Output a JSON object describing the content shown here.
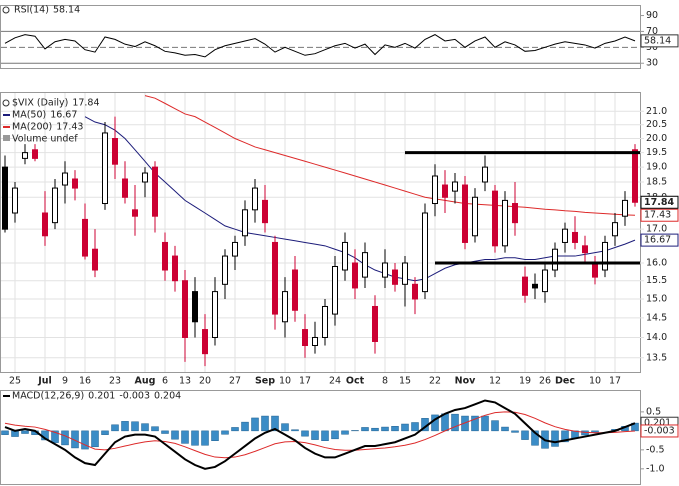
{
  "chart_data": [
    {
      "type": "line",
      "ylim": [
        24,
        102
      ],
      "yticks": [
        90,
        70,
        50,
        30
      ],
      "bands": [
        70,
        30
      ],
      "midline": 50,
      "series": [
        {
          "name": "RSI(14)",
          "color": "#000000",
          "values": [
            55,
            62,
            66,
            64,
            48,
            57,
            60,
            58,
            47,
            44,
            63,
            60,
            54,
            51,
            57,
            52,
            45,
            43,
            40,
            41,
            38,
            47,
            52,
            55,
            58,
            61,
            54,
            44,
            50,
            45,
            40,
            42,
            47,
            52,
            55,
            49,
            54,
            41,
            53,
            50,
            55,
            49,
            60,
            66,
            58,
            60,
            50,
            58,
            63,
            50,
            57,
            53,
            45,
            46,
            50,
            54,
            57,
            55,
            53,
            49,
            55,
            58,
            63,
            58.14
          ]
        }
      ]
    },
    {
      "type": "candlestick",
      "title": "$VIX (Daily)",
      "log_scale": true,
      "grid": true,
      "ylim": [
        13.16,
        21.7
      ],
      "yticks": [
        {
          "value": 21,
          "label": "21.0"
        },
        20.5,
        {
          "value": 20,
          "label": "20.0"
        },
        19.5,
        {
          "value": 19,
          "label": "19.0"
        },
        18.5,
        {
          "value": 18,
          "label": "18.0"
        },
        {
          "value": 17,
          "label": "17.0"
        },
        {
          "value": 16,
          "label": "16.0"
        },
        15.5,
        {
          "value": 15,
          "label": "15.0"
        },
        14.5,
        {
          "value": 14,
          "label": "14.0"
        },
        13.5
      ],
      "categories": [
        null,
        "25",
        null,
        null,
        "Jul",
        null,
        "9",
        null,
        "16",
        null,
        null,
        "23",
        null,
        null,
        "Aug",
        null,
        "6",
        null,
        "13",
        null,
        "20",
        null,
        null,
        "27",
        null,
        null,
        "Sep",
        null,
        "10",
        null,
        "17",
        null,
        null,
        "24",
        null,
        "Oct",
        null,
        null,
        "8",
        null,
        "15",
        null,
        null,
        "22",
        null,
        null,
        "Nov",
        null,
        null,
        "12",
        null,
        null,
        "19",
        null,
        "26",
        null,
        "Dec",
        null,
        null,
        "10",
        null,
        "17",
        null,
        null
      ],
      "up_color": "#000000",
      "down_color": "#cc0033",
      "open": [
        19.0,
        17.5,
        19.3,
        19.6,
        17.5,
        17.2,
        18.4,
        18.6,
        17.3,
        16.4,
        17.8,
        20.0,
        18.6,
        17.6,
        18.5,
        19.0,
        16.6,
        16.2,
        15.5,
        15.2,
        14.2,
        14.0,
        15.4,
        16.2,
        16.8,
        17.6,
        17.9,
        16.6,
        14.4,
        15.8,
        14.2,
        13.8,
        14.0,
        14.6,
        15.8,
        16.0,
        15.6,
        14.8,
        15.6,
        15.8,
        15.4,
        15.4,
        15.2,
        17.8,
        18.4,
        18.2,
        18.4,
        16.8,
        18.5,
        18.2,
        16.5,
        17.8,
        15.6,
        15.4,
        15.2,
        15.8,
        16.6,
        16.9,
        16.5,
        16.0,
        15.8,
        16.8,
        17.4,
        19.6
      ],
      "high": [
        19.4,
        18.5,
        19.8,
        19.8,
        18.2,
        18.6,
        19.2,
        18.9,
        17.8,
        17.0,
        20.6,
        20.8,
        19.2,
        18.4,
        19.0,
        19.2,
        16.9,
        16.5,
        15.8,
        15.6,
        14.6,
        15.6,
        16.4,
        16.8,
        17.9,
        18.6,
        18.4,
        16.8,
        15.6,
        16.2,
        14.6,
        14.4,
        15.0,
        16.2,
        16.9,
        16.4,
        16.6,
        15.1,
        16.4,
        16.0,
        16.2,
        15.6,
        17.8,
        19.1,
        18.9,
        18.8,
        18.7,
        18.3,
        19.4,
        18.4,
        18.2,
        18.5,
        15.9,
        15.7,
        16.0,
        16.6,
        17.2,
        17.4,
        16.8,
        16.2,
        16.8,
        17.5,
        18.2,
        19.8
      ],
      "low": [
        16.9,
        17.2,
        19.1,
        19.2,
        16.5,
        17.0,
        17.8,
        17.9,
        16.1,
        15.6,
        17.6,
        18.6,
        17.8,
        16.8,
        18.0,
        16.9,
        15.5,
        15.2,
        13.4,
        14.0,
        13.3,
        13.8,
        15.0,
        15.8,
        16.5,
        17.2,
        16.9,
        14.2,
        14.0,
        14.4,
        13.5,
        13.6,
        13.8,
        14.3,
        15.5,
        15.0,
        15.3,
        13.6,
        15.3,
        15.2,
        14.8,
        14.6,
        15.0,
        17.4,
        17.5,
        17.8,
        16.4,
        16.6,
        18.2,
        16.3,
        16.3,
        16.8,
        14.9,
        15.0,
        14.9,
        15.6,
        16.3,
        16.4,
        16.0,
        15.4,
        15.6,
        16.5,
        17.1,
        17.7
      ],
      "close": [
        17.0,
        18.3,
        19.5,
        19.3,
        16.8,
        18.3,
        18.8,
        18.3,
        16.2,
        15.8,
        20.2,
        19.1,
        18.0,
        17.4,
        18.8,
        17.4,
        15.8,
        15.5,
        14.0,
        14.4,
        13.6,
        15.2,
        16.2,
        16.6,
        17.6,
        18.3,
        17.2,
        14.6,
        15.2,
        14.7,
        13.8,
        14.0,
        14.8,
        15.9,
        16.6,
        15.3,
        16.3,
        13.9,
        16.0,
        15.4,
        16.0,
        15.0,
        17.5,
        18.7,
        18.0,
        18.5,
        16.6,
        18.0,
        19.0,
        16.5,
        17.9,
        17.2,
        15.1,
        15.3,
        15.8,
        16.4,
        17.0,
        16.6,
        16.3,
        15.6,
        16.6,
        17.2,
        17.9,
        17.84
      ],
      "series": [
        {
          "name": "MA(50)",
          "color": "#1c1c7a",
          "values": [
            null,
            null,
            null,
            null,
            null,
            null,
            null,
            null,
            20.8,
            20.6,
            20.5,
            20.3,
            20.0,
            19.6,
            19.2,
            18.8,
            18.5,
            18.2,
            17.9,
            17.7,
            17.5,
            17.3,
            17.1,
            17.0,
            16.9,
            16.85,
            16.8,
            16.75,
            16.7,
            16.65,
            16.6,
            16.55,
            16.5,
            16.4,
            16.3,
            16.15,
            15.95,
            15.8,
            15.7,
            15.6,
            15.55,
            15.5,
            15.55,
            15.7,
            15.85,
            15.95,
            16.0,
            16.05,
            16.1,
            16.1,
            16.15,
            16.15,
            16.1,
            16.1,
            16.15,
            16.2,
            16.2,
            16.2,
            16.25,
            16.3,
            16.35,
            16.45,
            16.55,
            16.67
          ]
        },
        {
          "name": "MA(200)",
          "color": "#dd2a2a",
          "values": [
            null,
            null,
            null,
            null,
            null,
            null,
            null,
            null,
            null,
            null,
            null,
            null,
            null,
            null,
            21.6,
            21.5,
            21.3,
            21.1,
            20.9,
            20.8,
            20.6,
            20.4,
            20.2,
            20.0,
            19.85,
            19.7,
            19.6,
            19.5,
            19.4,
            19.3,
            19.2,
            19.1,
            19.0,
            18.9,
            18.8,
            18.7,
            18.6,
            18.5,
            18.4,
            18.3,
            18.2,
            18.1,
            18.0,
            17.95,
            17.9,
            17.85,
            17.8,
            17.78,
            17.76,
            17.74,
            17.72,
            17.7,
            17.68,
            17.65,
            17.62,
            17.6,
            17.57,
            17.55,
            17.52,
            17.5,
            17.48,
            17.46,
            17.44,
            17.43
          ]
        }
      ],
      "volume_legend": "Volume undef",
      "annotations": [
        {
          "value": 19.5,
          "from": 40,
          "to": 63
        },
        {
          "value": 16.0,
          "from": 43,
          "to": 63
        }
      ]
    },
    {
      "type": "macd",
      "title": "MACD(12,26,9)",
      "ylim": [
        -1.4,
        1.05
      ],
      "yticks": [
        0.5,
        -0.5,
        {
          "value": -1,
          "label": "-1.0"
        }
      ],
      "macd": {
        "color": "#000000",
        "values": [
          0.1,
          0.0,
          0.05,
          0.0,
          -0.2,
          -0.35,
          -0.5,
          -0.7,
          -0.85,
          -0.9,
          -0.6,
          -0.3,
          -0.15,
          -0.1,
          -0.1,
          -0.15,
          -0.35,
          -0.55,
          -0.75,
          -0.9,
          -1.0,
          -0.95,
          -0.8,
          -0.6,
          -0.4,
          -0.2,
          -0.05,
          0.05,
          -0.1,
          -0.25,
          -0.45,
          -0.6,
          -0.7,
          -0.7,
          -0.6,
          -0.5,
          -0.4,
          -0.4,
          -0.35,
          -0.3,
          -0.2,
          -0.1,
          0.1,
          0.3,
          0.45,
          0.55,
          0.6,
          0.7,
          0.8,
          0.75,
          0.6,
          0.45,
          0.2,
          -0.05,
          -0.25,
          -0.3,
          -0.25,
          -0.2,
          -0.15,
          -0.1,
          -0.05,
          0.0,
          0.1,
          0.201
        ]
      },
      "signal": {
        "color": "#dd2a2a",
        "values": [
          0.2,
          0.15,
          0.12,
          0.1,
          0.04,
          -0.04,
          -0.13,
          -0.25,
          -0.37,
          -0.48,
          -0.5,
          -0.46,
          -0.4,
          -0.34,
          -0.29,
          -0.26,
          -0.28,
          -0.33,
          -0.42,
          -0.52,
          -0.62,
          -0.69,
          -0.71,
          -0.69,
          -0.63,
          -0.54,
          -0.44,
          -0.34,
          -0.29,
          -0.28,
          -0.31,
          -0.37,
          -0.44,
          -0.49,
          -0.51,
          -0.51,
          -0.49,
          -0.47,
          -0.45,
          -0.42,
          -0.38,
          -0.32,
          -0.23,
          -0.12,
          0.0,
          0.11,
          0.21,
          0.31,
          0.41,
          0.48,
          0.5,
          0.49,
          0.43,
          0.33,
          0.21,
          0.11,
          0.04,
          -0.01,
          -0.04,
          -0.05,
          -0.05,
          -0.04,
          -0.02,
          -0.003
        ]
      },
      "histogram": {
        "color": "#3b8cc6",
        "values": [
          -0.1,
          -0.15,
          -0.07,
          -0.1,
          -0.24,
          -0.31,
          -0.37,
          -0.45,
          -0.48,
          -0.42,
          -0.1,
          0.16,
          0.25,
          0.24,
          0.19,
          0.11,
          -0.07,
          -0.22,
          -0.33,
          -0.38,
          -0.38,
          -0.26,
          -0.09,
          0.09,
          0.23,
          0.34,
          0.39,
          0.39,
          0.19,
          0.03,
          -0.14,
          -0.23,
          -0.26,
          -0.21,
          -0.09,
          0.01,
          0.09,
          0.07,
          0.1,
          0.12,
          0.18,
          0.22,
          0.33,
          0.42,
          0.45,
          0.44,
          0.39,
          0.39,
          0.39,
          0.27,
          0.1,
          -0.04,
          -0.23,
          -0.38,
          -0.46,
          -0.41,
          -0.29,
          -0.19,
          -0.11,
          -0.05,
          0.0,
          0.04,
          0.12,
          0.204
        ]
      }
    }
  ]
}
